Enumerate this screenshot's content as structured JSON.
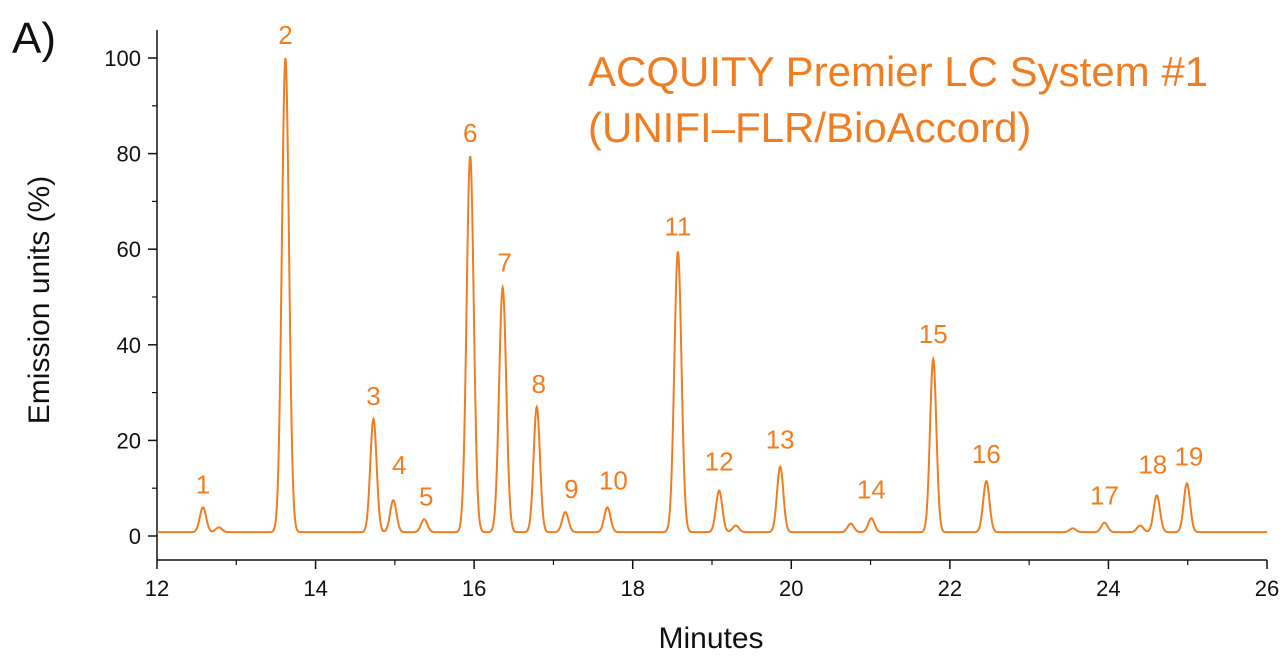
{
  "panel_label": "A)",
  "chart_data": {
    "type": "line",
    "title": [
      "ACQUITY Premier LC System #1",
      "(UNIFI–FLR/BioAccord)"
    ],
    "xlabel": "Minutes",
    "ylabel": "Emission units (%)",
    "xlim": [
      12,
      26
    ],
    "ylim": [
      -5,
      104
    ],
    "x_ticks": [
      12,
      14,
      16,
      18,
      20,
      22,
      24,
      26
    ],
    "y_ticks": [
      0,
      20,
      40,
      60,
      80,
      100
    ],
    "grid": false,
    "colors": {
      "trace": "#ef7d22",
      "axis": "#111111",
      "annotation": "#ef7d22"
    },
    "baseline": 0.8,
    "peaks": [
      {
        "label": "1",
        "x": 12.58,
        "y": 6.0
      },
      {
        "label": "2",
        "x": 13.62,
        "y": 100.0
      },
      {
        "label": "3",
        "x": 14.73,
        "y": 24.5
      },
      {
        "label": "4",
        "x": 14.98,
        "y": 7.5
      },
      {
        "label": "5",
        "x": 15.37,
        "y": 3.5
      },
      {
        "label": "6",
        "x": 15.95,
        "y": 79.5
      },
      {
        "label": "7",
        "x": 16.36,
        "y": 52.0
      },
      {
        "label": "8",
        "x": 16.79,
        "y": 27.0
      },
      {
        "label": "9",
        "x": 17.15,
        "y": 5.0
      },
      {
        "label": "10",
        "x": 17.68,
        "y": 6.0
      },
      {
        "label": "11",
        "x": 18.57,
        "y": 59.5
      },
      {
        "label": "12",
        "x": 19.09,
        "y": 9.5
      },
      {
        "label": "13",
        "x": 19.86,
        "y": 14.5
      },
      {
        "label": "14",
        "x": 21.01,
        "y": 3.7
      },
      {
        "label": "15",
        "x": 21.79,
        "y": 37.0
      },
      {
        "label": "16",
        "x": 22.46,
        "y": 11.5
      },
      {
        "label": "17",
        "x": 23.95,
        "y": 2.8
      },
      {
        "label": "18",
        "x": 24.61,
        "y": 8.5
      },
      {
        "label": "19",
        "x": 24.99,
        "y": 11.0
      }
    ],
    "minor_peaks": [
      {
        "x": 12.78,
        "y": 1.8
      },
      {
        "x": 19.3,
        "y": 2.2
      },
      {
        "x": 20.75,
        "y": 2.6
      },
      {
        "x": 23.55,
        "y": 1.6
      },
      {
        "x": 24.4,
        "y": 2.2
      }
    ]
  }
}
